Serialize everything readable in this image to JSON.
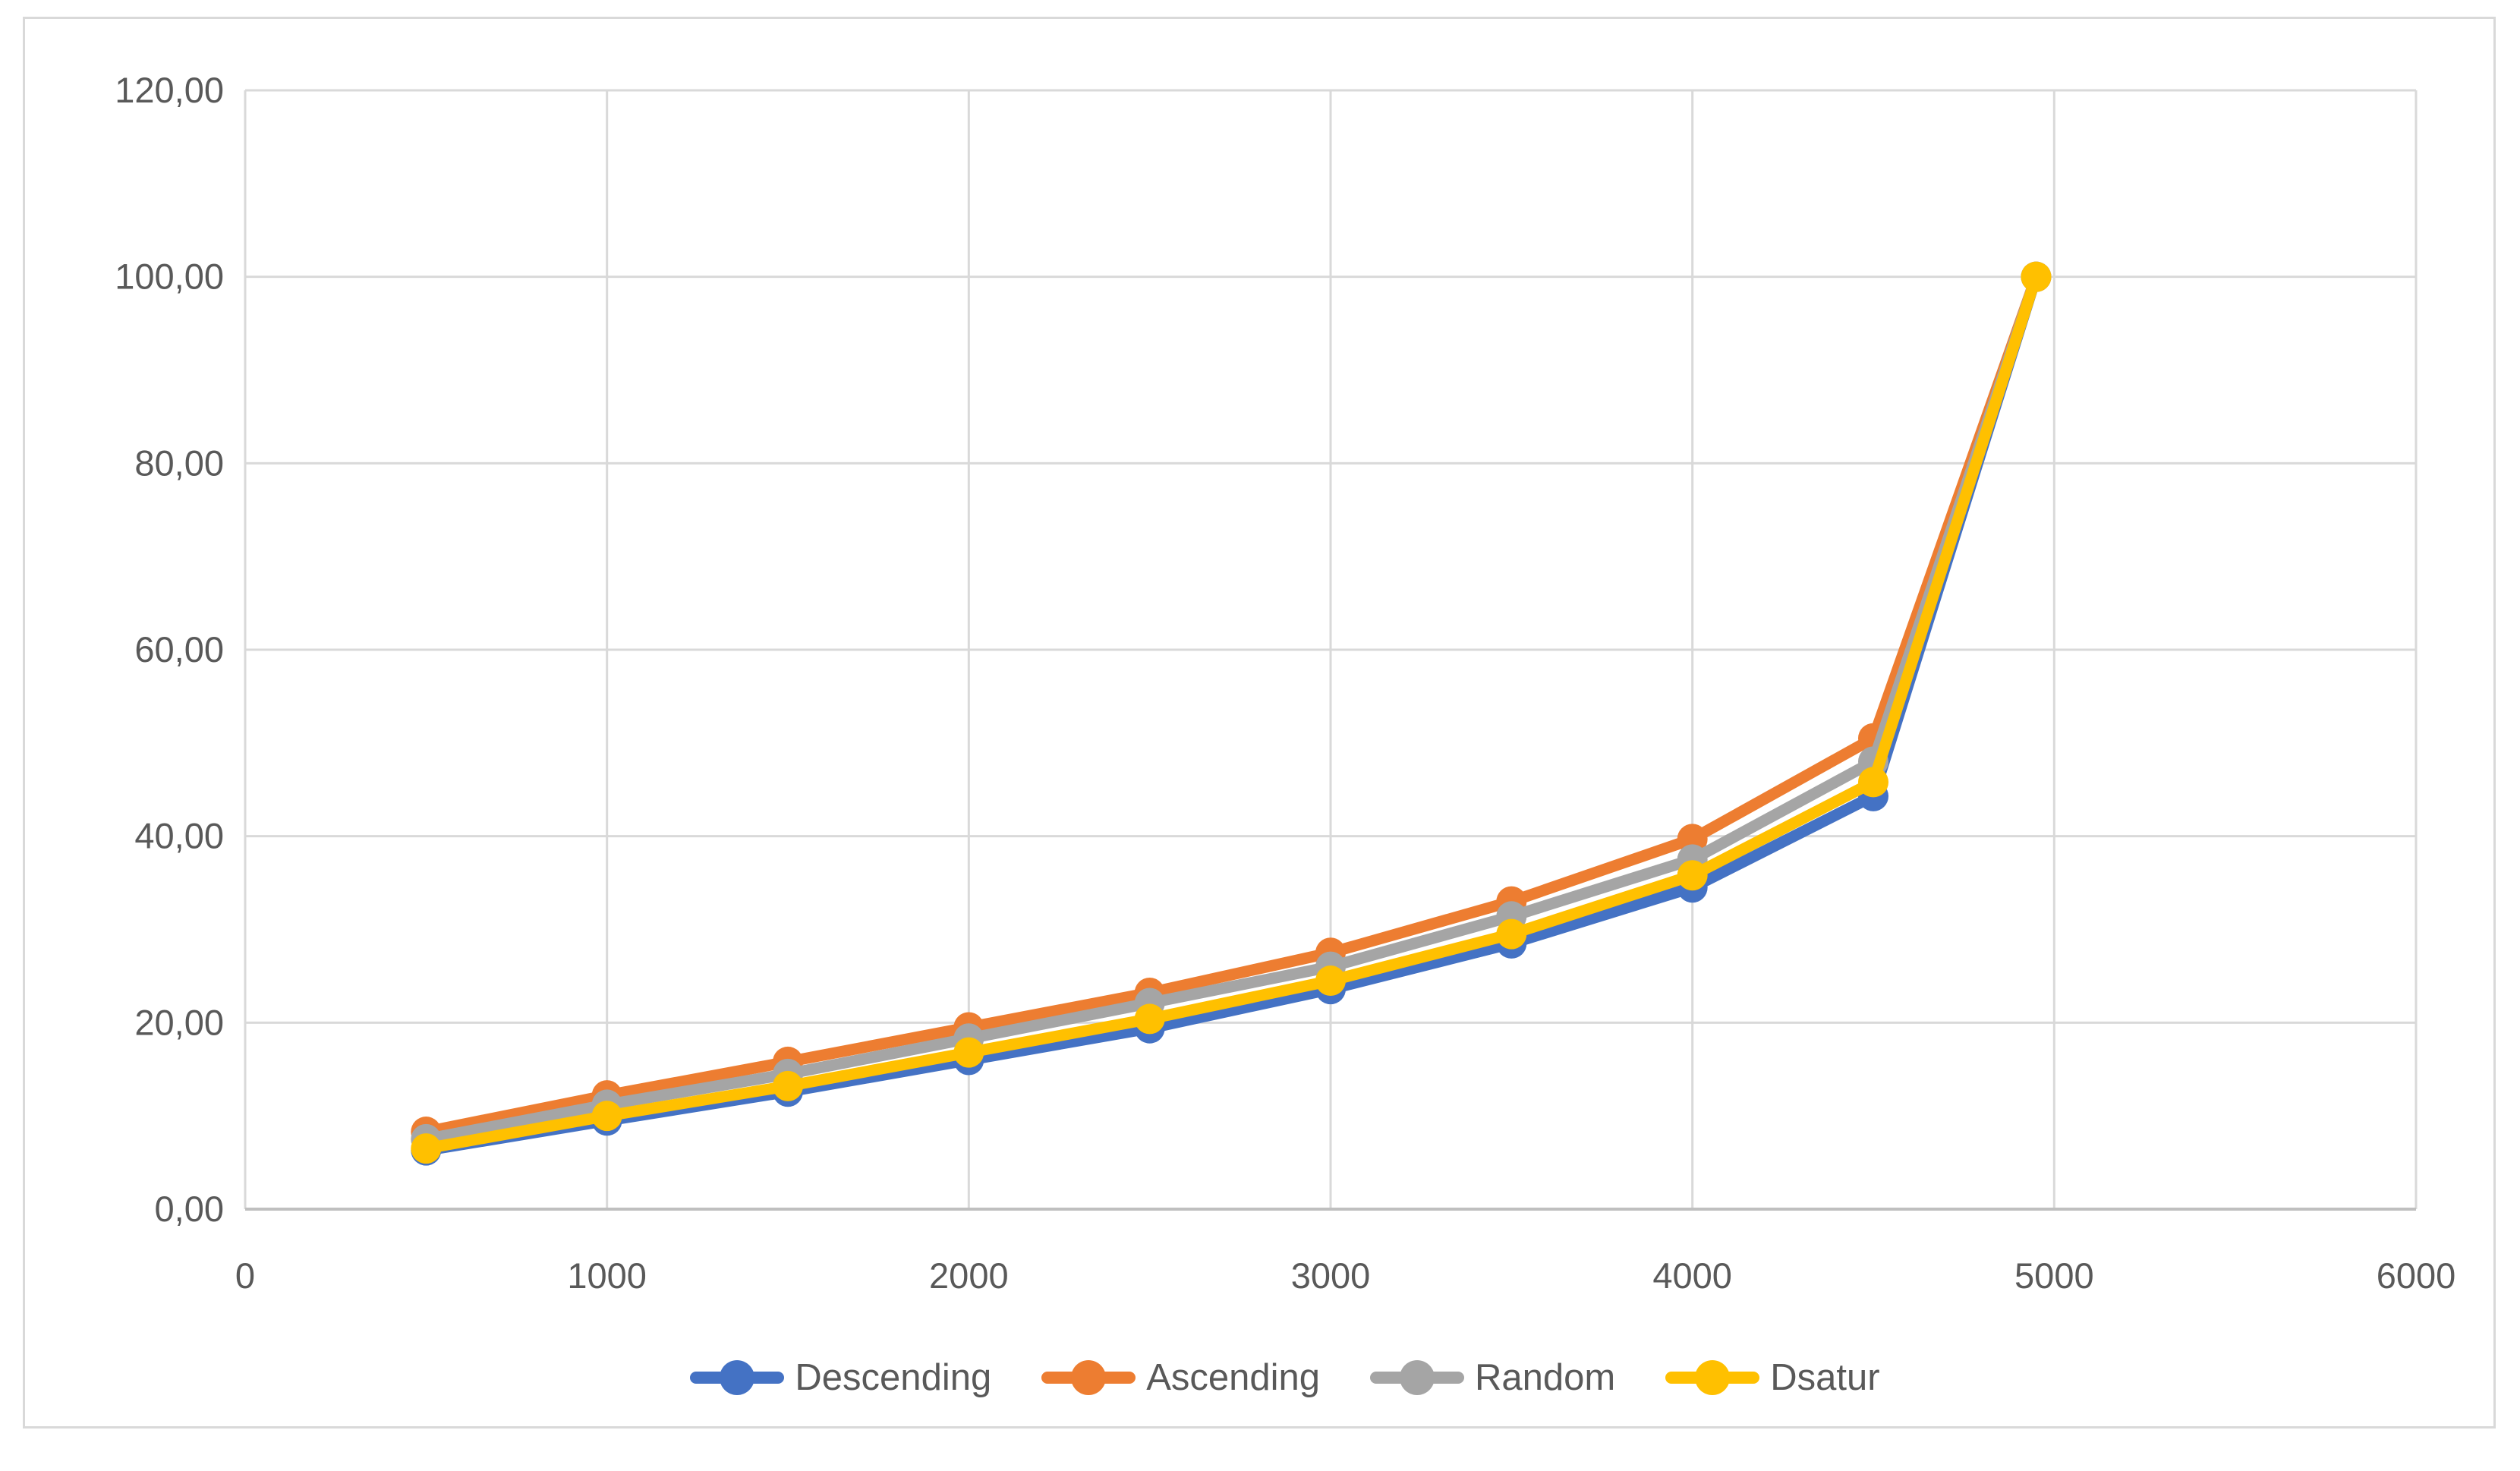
{
  "chart_data": {
    "type": "line",
    "x": [
      500,
      1000,
      1500,
      2000,
      2500,
      3000,
      3500,
      4000,
      4500,
      4950
    ],
    "series": [
      {
        "name": "Descending",
        "color": "#4472C4",
        "values": [
          6.3,
          9.5,
          12.6,
          16.0,
          19.4,
          23.6,
          28.5,
          34.5,
          44.3,
          100.0
        ]
      },
      {
        "name": "Ascending",
        "color": "#ED7D31",
        "values": [
          8.3,
          12.2,
          15.8,
          19.5,
          23.2,
          27.5,
          33.0,
          39.7,
          50.5,
          100.0
        ]
      },
      {
        "name": "Random",
        "color": "#A5A5A5",
        "values": [
          7.5,
          11.2,
          14.5,
          18.3,
          22.1,
          26.0,
          31.4,
          37.5,
          48.0,
          100.0
        ]
      },
      {
        "name": "Dsatur",
        "color": "#FFC000",
        "values": [
          6.5,
          10.0,
          13.2,
          16.8,
          20.4,
          24.5,
          29.5,
          35.8,
          45.8,
          100.0
        ]
      }
    ],
    "x_axis": {
      "min": 0,
      "max": 6000,
      "tick_step": 1000,
      "tick_values": [
        0,
        1000,
        2000,
        3000,
        4000,
        5000,
        6000
      ],
      "tick_labels": [
        "0",
        "1000",
        "2000",
        "3000",
        "4000",
        "5000",
        "6000"
      ]
    },
    "y_axis": {
      "min": 0,
      "max": 120,
      "tick_step": 20,
      "tick_values": [
        0,
        20,
        40,
        60,
        80,
        100,
        120
      ],
      "tick_labels": [
        "0,00",
        "20,00",
        "40,00",
        "60,00",
        "80,00",
        "100,00",
        "120,00"
      ],
      "decimal_separator": ","
    },
    "grid": true,
    "legend_position": "bottom"
  },
  "styles": {
    "grid_color": "#D9D9D9",
    "x_axis_line_color": "#BFBFBF",
    "y_axis_line_color": "#D9D9D9",
    "tick_text_color": "#595959",
    "legend_text_color": "#595959",
    "frame_border_color": "#D9D9D9",
    "background_color": "#FFFFFF"
  }
}
